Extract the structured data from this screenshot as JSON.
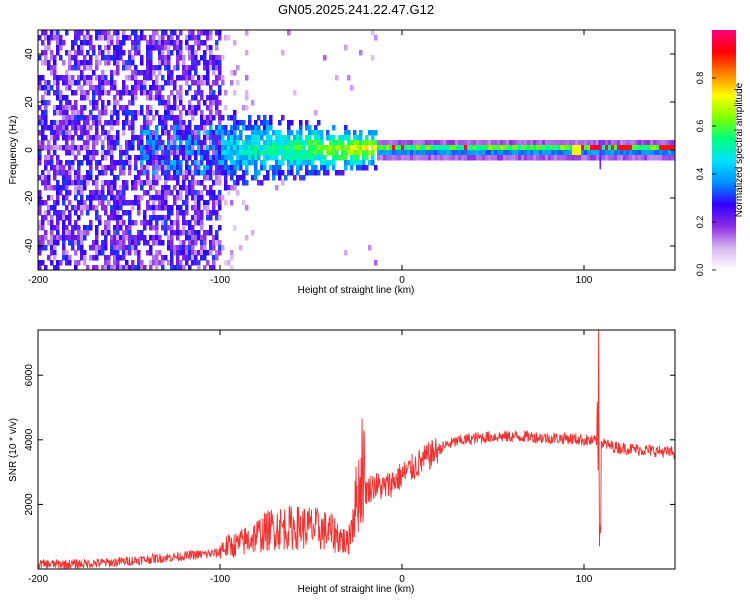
{
  "title": "GN05.2025.241.22.47.G12",
  "chart_data": [
    {
      "type": "heatmap",
      "title": "GN05.2025.241.22.47.G12",
      "xlabel": "Height of straight line (km)",
      "ylabel": "Frequency (Hz)",
      "xlim": [
        -200,
        150
      ],
      "ylim": [
        -50,
        50
      ],
      "x_ticks": [
        -200,
        -100,
        0,
        100
      ],
      "y_ticks": [
        -40,
        -20,
        0,
        20,
        40
      ],
      "x_tick_labels": [
        "-200",
        "-100",
        "0",
        "100"
      ],
      "y_tick_labels": [
        "-40",
        "-20",
        "0",
        "20",
        "40"
      ],
      "colorbar": {
        "label": "Normalized spectral amplitude",
        "range": [
          0,
          1
        ],
        "ticks": [
          0.0,
          0.2,
          0.4,
          0.6,
          0.8
        ],
        "tick_labels": [
          "0.0",
          "0.2",
          "0.4",
          "0.6",
          "0.8"
        ],
        "colormap": [
          "#ffffff",
          "#d9b8f0",
          "#8a2be2",
          "#3000ff",
          "#0090ff",
          "#00e0ff",
          "#00ff80",
          "#80ff00",
          "#ffff00",
          "#ff8000",
          "#ff0000",
          "#ff0080"
        ]
      },
      "description_points": [
        {
          "x": -200,
          "noise_band": [
            -50,
            50
          ],
          "amplitude": 0.15
        },
        {
          "x": -100,
          "noise_band": [
            -10,
            15
          ],
          "amplitude": 0.3
        },
        {
          "x": -50,
          "noise_band": [
            -5,
            12
          ],
          "amplitude": 0.45
        },
        {
          "x": -20,
          "noise_band": [
            -2,
            5
          ],
          "amplitude": 0.7
        },
        {
          "x": 0,
          "noise_band": [
            -1,
            3
          ],
          "amplitude": 0.75
        },
        {
          "x": 50,
          "noise_band": [
            -1,
            3
          ],
          "amplitude": 0.7
        },
        {
          "x": 100,
          "noise_band": [
            -1,
            3
          ],
          "amplitude": 0.9
        },
        {
          "x": 150,
          "noise_band": [
            -1,
            3
          ],
          "amplitude": 0.85
        }
      ]
    },
    {
      "type": "line",
      "xlabel": "Height of straight line (km)",
      "ylabel": "SNR (10 * v/v)",
      "xlim": [
        -200,
        150
      ],
      "ylim": [
        0,
        7400
      ],
      "x_ticks": [
        -200,
        -100,
        0,
        100
      ],
      "y_ticks": [
        2000,
        4000,
        6000
      ],
      "x_tick_labels": [
        "-200",
        "-100",
        "0",
        "100"
      ],
      "y_tick_labels": [
        "2000",
        "4000",
        "6000"
      ],
      "color": "#ee3333",
      "series": [
        {
          "name": "SNR",
          "x": [
            -200,
            -180,
            -160,
            -140,
            -120,
            -100,
            -90,
            -80,
            -70,
            -60,
            -50,
            -40,
            -35,
            -30,
            -25,
            -22,
            -20,
            -15,
            -10,
            -5,
            0,
            5,
            10,
            15,
            20,
            25,
            30,
            40,
            50,
            60,
            70,
            80,
            90,
            100,
            105,
            108,
            110,
            115,
            120,
            130,
            140,
            150
          ],
          "y": [
            150,
            150,
            200,
            300,
            400,
            500,
            600,
            800,
            1000,
            1000,
            1000,
            900,
            800,
            600,
            1700,
            2200,
            2400,
            2600,
            2500,
            2700,
            2900,
            3100,
            3300,
            3500,
            3700,
            3850,
            3950,
            4050,
            4100,
            4100,
            4100,
            4050,
            4050,
            4000,
            3950,
            4000,
            3900,
            3800,
            3750,
            3700,
            3650,
            3600
          ]
        }
      ],
      "spikes": [
        {
          "x": -22,
          "y": 4650
        },
        {
          "x": 108,
          "y": 7400
        },
        {
          "x": 108.5,
          "y": 700
        }
      ]
    }
  ]
}
